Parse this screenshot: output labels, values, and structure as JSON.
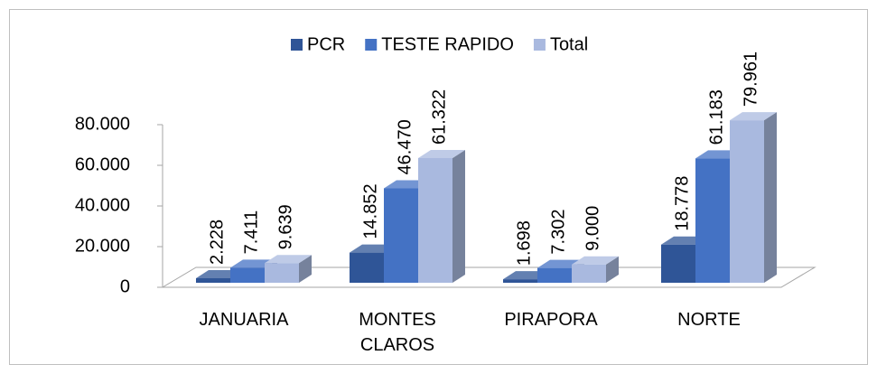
{
  "chart_data": {
    "type": "bar3d",
    "categories": [
      "JANUARIA",
      "MONTES CLAROS",
      "PIRAPORA",
      "NORTE"
    ],
    "series": [
      {
        "name": "PCR",
        "color": "#2f5597",
        "values": [
          2228,
          14852,
          1698,
          18778
        ],
        "value_labels": [
          "2.228",
          "14.852",
          "1.698",
          "18.778"
        ]
      },
      {
        "name": "TESTE RAPIDO",
        "color": "#4472c4",
        "values": [
          7411,
          46470,
          7302,
          61183
        ],
        "value_labels": [
          "7.411",
          "46.470",
          "7.302",
          "61.183"
        ]
      },
      {
        "name": "Total",
        "color": "#a9b9df",
        "values": [
          9639,
          61322,
          9000,
          79961
        ],
        "value_labels": [
          "9.639",
          "61.322",
          "9.000",
          "79.961"
        ]
      }
    ],
    "ylim": [
      0,
      80000
    ],
    "yticks": [
      0,
      {
        "value": 20000,
        "label": "20.000"
      },
      {
        "value": 40000,
        "label": "40.000"
      },
      {
        "value": 60000,
        "label": "60.000"
      },
      {
        "value": 80000,
        "label": "80.000"
      }
    ],
    "legend": "top"
  }
}
